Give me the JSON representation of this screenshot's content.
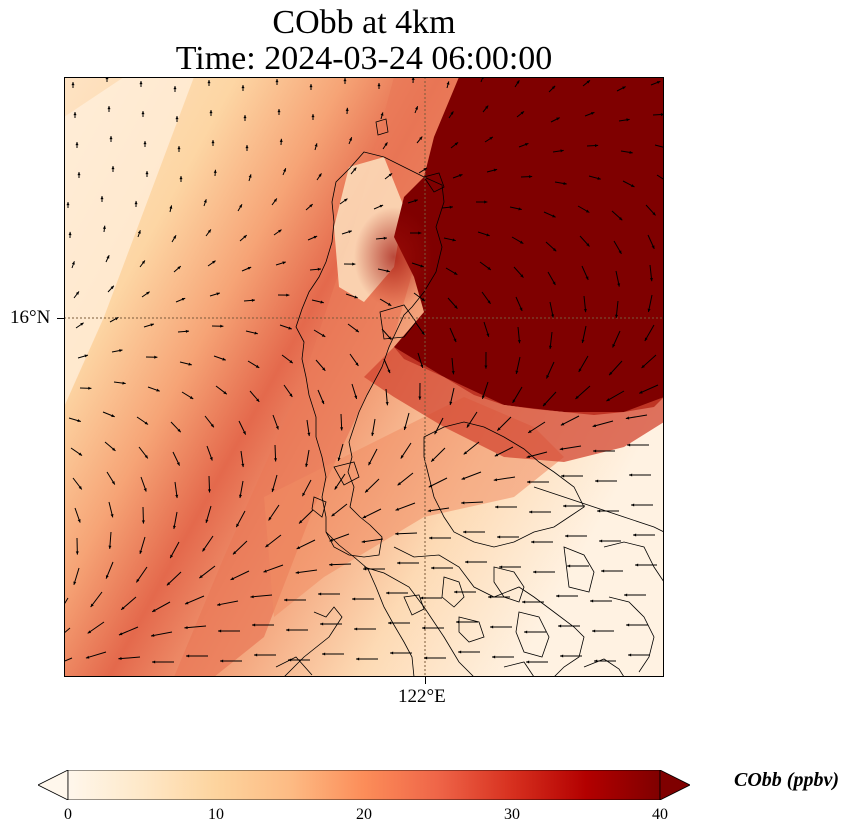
{
  "title": {
    "line1": "CObb at 4km",
    "line2": "Time: 2024-03-24 06:00:00"
  },
  "map": {
    "variable": "CObb",
    "level": "4km",
    "gridlines": {
      "lat": "16°N",
      "lon": "122°E",
      "style": "dotted"
    },
    "lat_label": "16°N",
    "lon_label": "122°E",
    "field_description": "plume of high CObb concentration over the northeast (max >40 ppbv), decreasing toward southwest",
    "wind_vectors": "black arrows, mostly westward/southwestward in the south and northward in the west"
  },
  "colorbar": {
    "colormap": "OrRd",
    "colors": [
      "#fff7ec",
      "#fee8c8",
      "#fdd49e",
      "#fdbb84",
      "#fc8d59",
      "#ef6548",
      "#d7301f",
      "#b30000",
      "#7f0000"
    ],
    "min": 0,
    "max": 40,
    "extend": "both",
    "ticks": [
      "0",
      "10",
      "20",
      "30",
      "40"
    ],
    "units_label": "CObb (ppbv)"
  }
}
